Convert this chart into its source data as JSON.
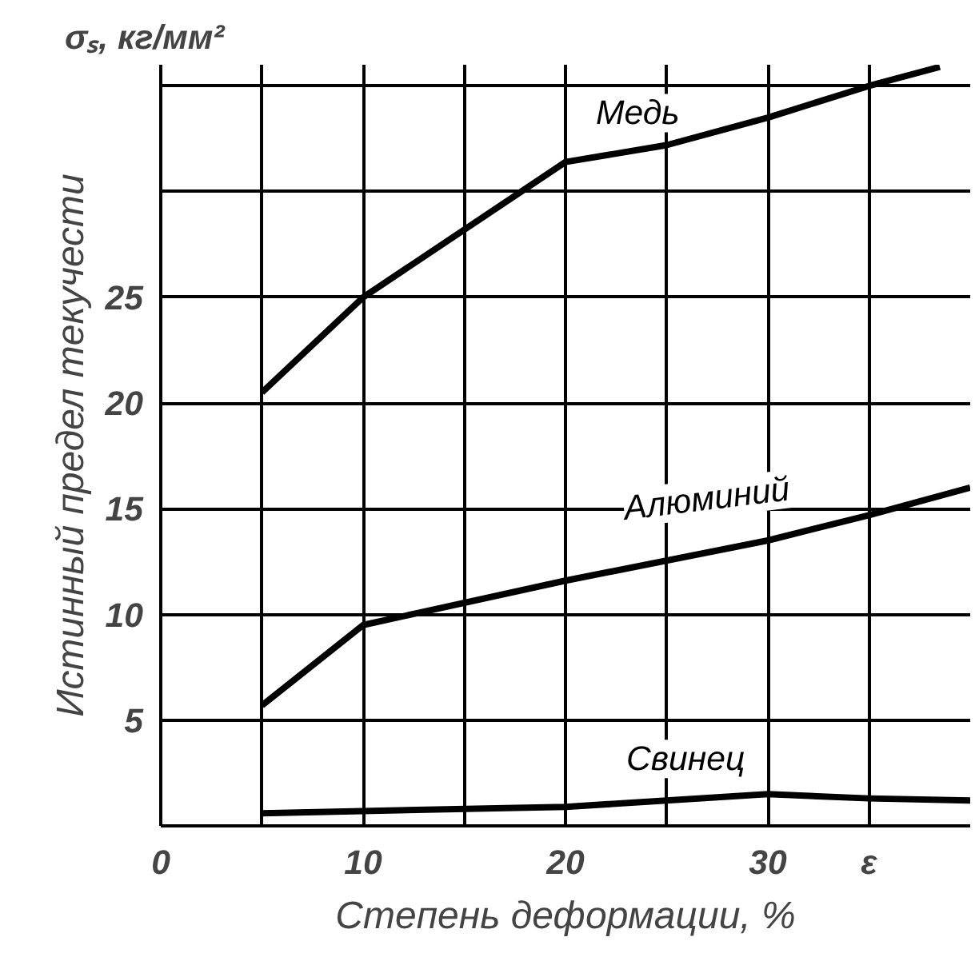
{
  "chart_data": {
    "type": "line",
    "title": "σₛ, кг/мм²",
    "xlabel": "Степень деформации, %",
    "ylabel": "Истинный предел текучести",
    "xlim": [
      0,
      40
    ],
    "ylim": [
      0,
      36
    ],
    "xticks": [
      0,
      {
        "value": 5,
        "label": null
      },
      10,
      {
        "value": 15,
        "label": null
      },
      20,
      {
        "value": 25,
        "label": null
      },
      30,
      {
        "value": 35,
        "label": "ε"
      }
    ],
    "yticks": [
      {
        "value": 0,
        "label": null
      },
      5,
      10,
      15,
      20,
      25,
      {
        "value": 30,
        "label": null
      },
      {
        "value": 35,
        "label": null
      }
    ],
    "grid": true,
    "legend": false,
    "line_style": "solid",
    "marker": "none",
    "series": [
      {
        "name": "Медь",
        "color": "#000000",
        "x": [
          5,
          10,
          20,
          25,
          30,
          35,
          38.5
        ],
        "values": [
          20.5,
          25,
          31.4,
          32.2,
          33.5,
          35,
          35.9
        ]
      },
      {
        "name": "Алюминий",
        "color": "#000000",
        "x": [
          5,
          10,
          20,
          30,
          35,
          40
        ],
        "values": [
          5.7,
          9.5,
          11.6,
          13.5,
          14.7,
          16
        ]
      },
      {
        "name": "Свинец",
        "color": "#000000",
        "x": [
          5,
          20,
          30,
          35,
          40
        ],
        "values": [
          0.6,
          0.9,
          1.5,
          1.3,
          1.2
        ]
      }
    ]
  }
}
